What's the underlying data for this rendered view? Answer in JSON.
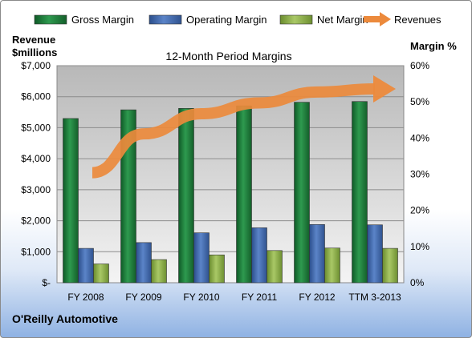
{
  "chart_data": {
    "type": "bar",
    "title": "12-Month Period Margins",
    "company": "O'Reilly Automotive",
    "left_axis_label": [
      "Revenue",
      "$millions"
    ],
    "right_axis_label": "Margin %",
    "categories": [
      "FY 2008",
      "FY 2009",
      "FY 2010",
      "FY 2011",
      "FY 2012",
      "TTM 3-2013"
    ],
    "left_axis": {
      "min": 0,
      "max": 7000,
      "ticks": [
        "$-",
        "$1,000",
        "$2,000",
        "$3,000",
        "$4,000",
        "$5,000",
        "$6,000",
        "$7,000"
      ]
    },
    "right_axis": {
      "min": 0,
      "max": 60,
      "ticks": [
        "0%",
        "10%",
        "20%",
        "30%",
        "40%",
        "50%",
        "60%"
      ]
    },
    "series": [
      {
        "name": "Gross Margin",
        "axis": "right",
        "color": "#1e7d3c",
        "values": [
          45.4,
          47.8,
          48.2,
          48.9,
          49.9,
          50.1
        ]
      },
      {
        "name": "Operating Margin",
        "axis": "right",
        "color": "#3f67ad",
        "values": [
          9.5,
          11.1,
          13.8,
          15.2,
          16.1,
          16.0
        ]
      },
      {
        "name": "Net Margin",
        "axis": "right",
        "color": "#8aae45",
        "values": [
          5.2,
          6.4,
          7.7,
          8.9,
          9.6,
          9.5
        ]
      }
    ],
    "revenue_trend": {
      "name": "Revenues",
      "axis": "left",
      "color": "#ec8a3c",
      "values": [
        3550,
        4800,
        5450,
        5800,
        6150,
        6250
      ]
    },
    "grid": true,
    "legend_position": "top"
  }
}
